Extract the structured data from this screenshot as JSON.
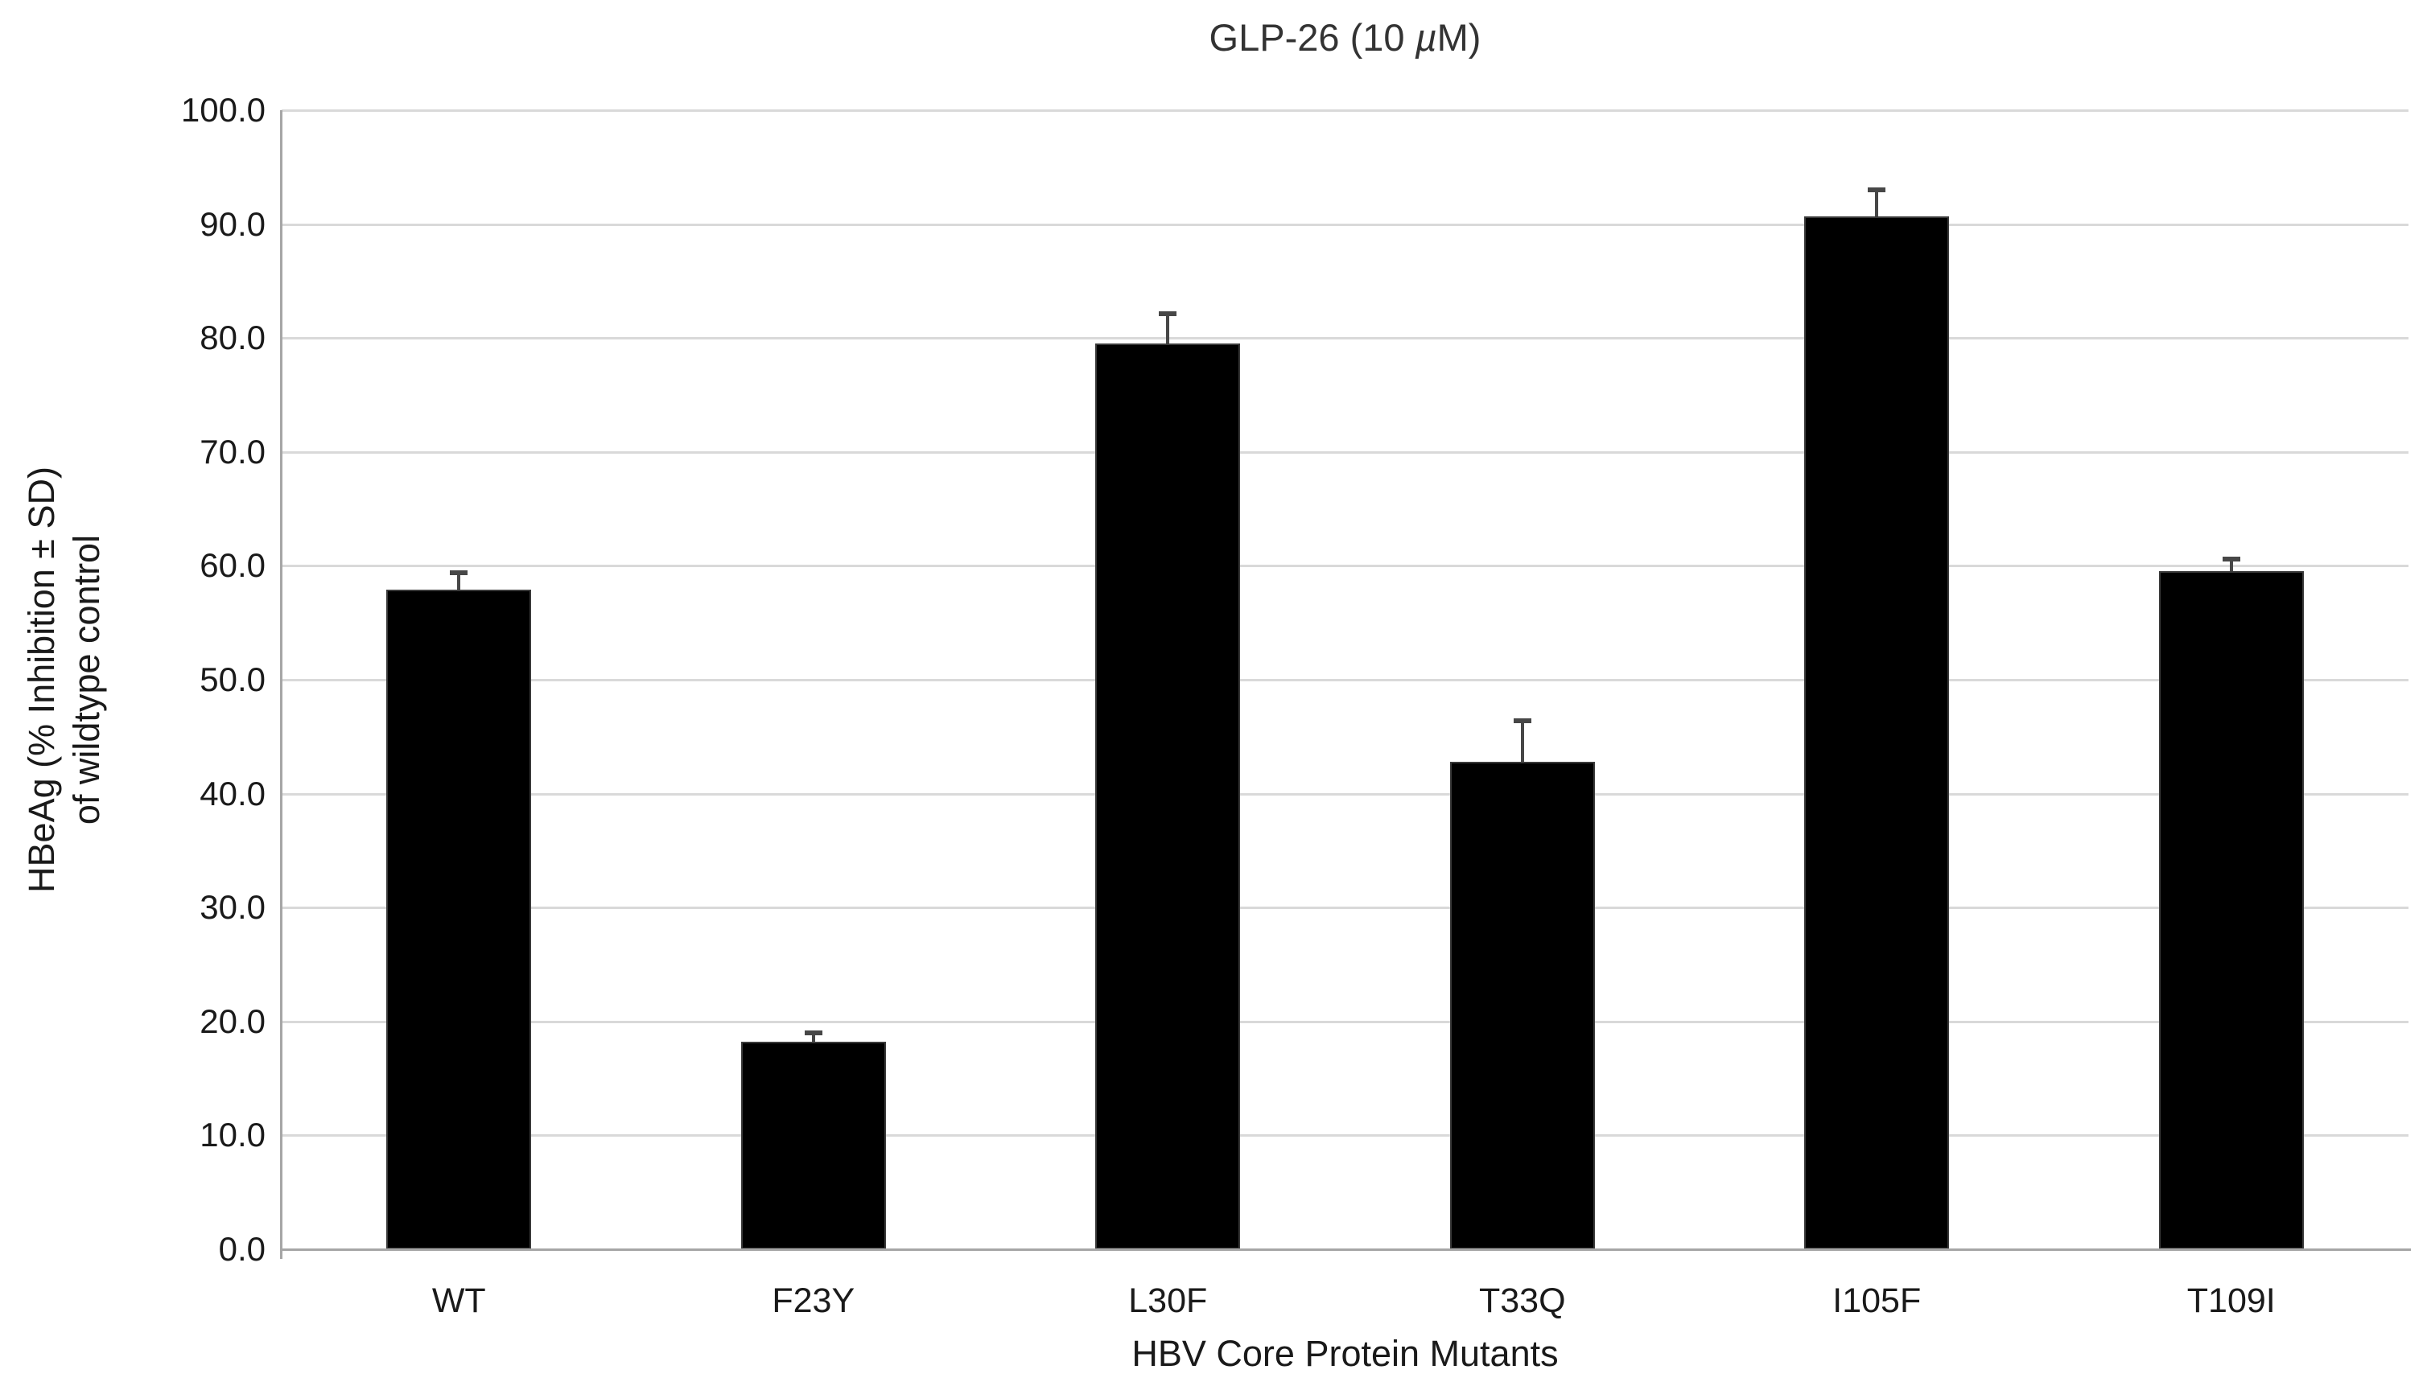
{
  "chart_data": {
    "type": "bar",
    "title_text": "GLP-26 (10 µM)",
    "title_parts": {
      "pre": "GLP-26 (10 ",
      "mu": "µ",
      "post": "M)"
    },
    "categories": [
      "WT",
      "F23Y",
      "L30F",
      "T33Q",
      "I105F",
      "T109I"
    ],
    "series": [
      {
        "name": "HBeAg % inhibition",
        "values": [
          57.9,
          18.2,
          79.5,
          42.8,
          90.7,
          59.5
        ],
        "errors_sd": [
          1.5,
          0.8,
          2.6,
          3.6,
          2.3,
          1.1
        ]
      }
    ],
    "xlabel": "HBV Core Protein Mutants",
    "ylabel_line1": "HBeAg (% Inhibition ± SD)",
    "ylabel_line2": "of wildtype control",
    "ylim": [
      0,
      100
    ],
    "ytick_step": 10,
    "ytick_labels": [
      "0.0",
      "10.0",
      "20.0",
      "30.0",
      "40.0",
      "50.0",
      "60.0",
      "70.0",
      "80.0",
      "90.0",
      "100.0"
    ],
    "grid": true,
    "legend_position": "none",
    "colors": {
      "bar_fill": "#000000",
      "bar_edge": "#3a3a3a",
      "error_bar": "#474747",
      "gridline": "#d9d9d9",
      "axis_line": "#a6a6a6",
      "text": "#1a1a1a",
      "background": "#ffffff"
    }
  }
}
